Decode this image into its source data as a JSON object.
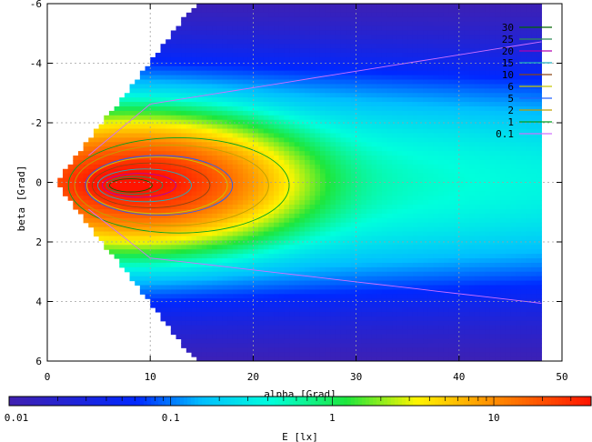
{
  "chart_data": {
    "type": "heatmap",
    "title": "",
    "xlabel": "alpha [Grad]",
    "ylabel": "beta [Grad]",
    "xlim": [
      0,
      50
    ],
    "ylim": [
      -6,
      6
    ],
    "y_axis_inverted": true,
    "x_ticks": [
      "0",
      "10",
      "20",
      "30",
      "40",
      "50"
    ],
    "x_tick_values": [
      0,
      10,
      20,
      30,
      40,
      50
    ],
    "y_ticks": [
      "-6",
      "-4",
      "-2",
      "0",
      "2",
      "4",
      "6"
    ],
    "y_tick_values": [
      -6,
      -4,
      -2,
      0,
      2,
      4,
      6
    ],
    "grid": true,
    "legend_position": "top-right",
    "contour_levels": [
      {
        "label": "30",
        "value": 30,
        "color": "#006400"
      },
      {
        "label": "25",
        "value": 25,
        "color": "#2e8b57"
      },
      {
        "label": "20",
        "value": 20,
        "color": "#b000b0"
      },
      {
        "label": "15",
        "value": 15,
        "color": "#20b0c0"
      },
      {
        "label": "10",
        "value": 10,
        "color": "#8b4513"
      },
      {
        "label": "6",
        "value": 6,
        "color": "#c8c800"
      },
      {
        "label": "5",
        "value": 5,
        "color": "#2060ff"
      },
      {
        "label": "2",
        "value": 2,
        "color": "#c0a000"
      },
      {
        "label": "1",
        "value": 1,
        "color": "#00a020"
      },
      {
        "label": "0.1",
        "value": 0.1,
        "color": "#d070ff"
      }
    ],
    "colorbar": {
      "label": "E [lx]",
      "scale": "log",
      "range": [
        0.01,
        40
      ],
      "ticks": [
        "0.01",
        "0.1",
        "1",
        "10"
      ],
      "tick_values": [
        0.01,
        0.1,
        1,
        10
      ]
    },
    "field": {
      "alpha_min": 1,
      "alpha_max": 48,
      "peak_illuminance": 35,
      "peak_alpha": 7,
      "peak_beta": 0.1
    }
  }
}
